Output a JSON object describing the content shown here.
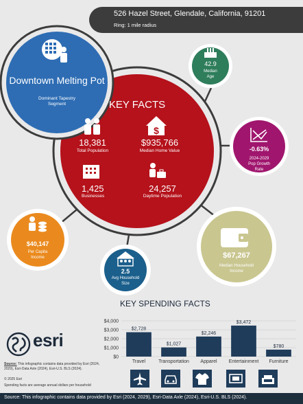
{
  "header": {
    "address": "526 Hazel Street, Glendale, California, 91201",
    "ring": "Ring: 1 mile radius"
  },
  "tapestry": {
    "title": "Downtown Melting Pot",
    "subtitle_line1": "Dominant Tapestry",
    "subtitle_line2": "Segment"
  },
  "key_facts": {
    "title": "KEY FACTS",
    "total_population": {
      "value": "18,381",
      "label": "Total Population"
    },
    "median_home_value": {
      "value": "$935,766",
      "label": "Median Home Value"
    },
    "businesses": {
      "value": "1,425",
      "label": "Businesses"
    },
    "daytime_population": {
      "value": "24,257",
      "label": "Daytime Population"
    }
  },
  "median_age": {
    "value": "42.9",
    "label_line1": "Median",
    "label_line2": "Age"
  },
  "pop_growth": {
    "value": "-0.63%",
    "label_line1": "2024-2029",
    "label_line2": "Pop Growth",
    "label_line3": "Rate"
  },
  "per_capita": {
    "value": "$40,147",
    "label_line1": "Per Capita",
    "label_line2": "Income"
  },
  "household_size": {
    "value": "2.5",
    "label_line1": "Avg Household",
    "label_line2": "Size"
  },
  "household_income": {
    "value": "$67,267",
    "label_line1": "Median Household",
    "label_line2": "Income"
  },
  "colors": {
    "tapestry_blue": "#2e6db4",
    "key_facts_red": "#b5121b",
    "age_green": "#2e7d5b",
    "growth_magenta": "#a0166e",
    "per_capita_orange": "#ea8a1e",
    "household_size_teal": "#1b5f8c",
    "income_olive": "#c9c690",
    "bar_navy": "#1f3c5a",
    "ring_dark": "#3c3c3c"
  },
  "chart_data": {
    "type": "bar",
    "title": "KEY SPENDING FACTS",
    "categories": [
      "Travel",
      "Transportation",
      "Apparel",
      "Entertainment",
      "Furniture"
    ],
    "values": [
      2728,
      1027,
      2246,
      3472,
      780
    ],
    "value_labels": [
      "$2,728",
      "$1,027",
      "$2,246",
      "$3,472",
      "$780"
    ],
    "y_ticks": [
      "$0",
      "$1,000",
      "$2,000",
      "$3,000",
      "$4,000"
    ],
    "ylim": [
      0,
      4000
    ],
    "grid": true,
    "icons": [
      "airplane-icon",
      "car-icon",
      "shirt-icon",
      "ticket-icon",
      "armchair-icon"
    ]
  },
  "brand": {
    "name": "esri"
  },
  "source": {
    "label": "Source:",
    "text": " This infographic contains data provided by Esri (2024, 2029), Esri-Data Axle (2024), Esri-U.S. BLS (2024).",
    "copyright": "© 2025 Esri",
    "spending_note": "Spending facts are average annual dollars per household",
    "footer": "Source: This infographic contains data provided by Esri (2024, 2029), Esri-Data Axle (2024), Esri-U.S. BLS (2024)."
  }
}
